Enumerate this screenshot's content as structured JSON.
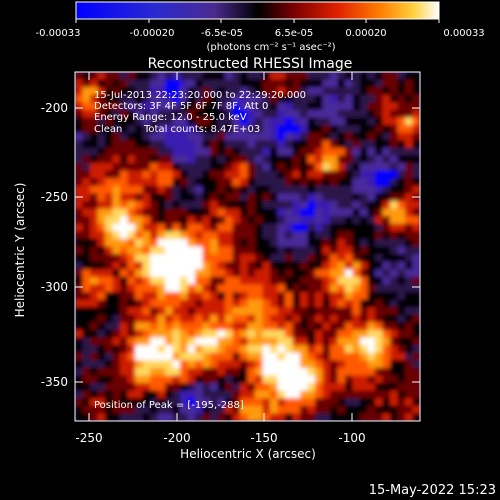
{
  "colorbar": {
    "tick_labels": [
      "-0.00033",
      "-0.00020",
      "-6.5e-05",
      "6.5e-05",
      "0.00020",
      "0.00033"
    ],
    "unit_label": "(photons cm⁻² s⁻¹ asec⁻²)",
    "range": [
      -0.00033,
      0.00033
    ]
  },
  "plot": {
    "title": "Reconstructed RHESSI Image",
    "xlabel": "Heliocentric X (arcsec)",
    "ylabel": "Heliocentric Y (arcsec)",
    "x_ticks": [
      "-250",
      "-200",
      "-150",
      "-100"
    ],
    "y_ticks": [
      "-200",
      "-250",
      "-300",
      "-350"
    ],
    "xlim": [
      -263,
      -65
    ],
    "ylim": [
      -374,
      -179
    ]
  },
  "annotations": {
    "time_range": "15-Jul-2013 22:23:20.000 to 22:29:20.000",
    "detectors": "Detectors: 3F 4F 5F 6F 7F 8F, Att 0",
    "energy": "Energy Range: 12.0 - 25.0 keV",
    "method": "Clean",
    "counts": "Total counts: 8.47E+03",
    "peak": "Position of Peak = [-195,-288]"
  },
  "footer": {
    "timestamp": "15-May-2022 15:23"
  },
  "colors": {
    "palette": [
      "#0000ff",
      "#3a1fb0",
      "#4a2a9a",
      "#2b1248",
      "#000000",
      "#6a0000",
      "#cc1a00",
      "#ff5a00",
      "#ff9a10",
      "#ffd860",
      "#ffffff"
    ]
  }
}
